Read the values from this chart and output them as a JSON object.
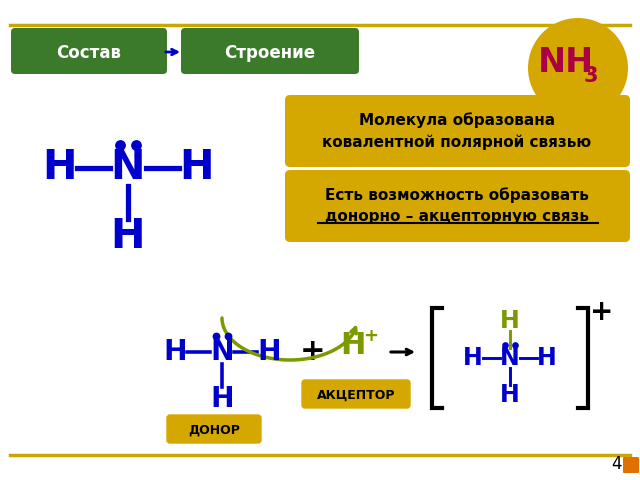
{
  "bg_color": "#ffffff",
  "top_line_color": "#c8a800",
  "bottom_line_color": "#c8a800",
  "green_box_color": "#3a7a2a",
  "green_box_text_color": "#ffffff",
  "gold_box_color": "#d4a800",
  "gold_circle_color": "#d4a800",
  "nh3_text_color": "#aa0044",
  "blue_atom_color": "#0000cc",
  "olive_atom_color": "#7a9a00",
  "black_color": "#111111",
  "label1": "Состав",
  "label2": "Строение",
  "box1_line1": "Молекула образована",
  "box1_line2": "ковалентной полярной связью",
  "box2_line1": "Есть возможность образовать",
  "box2_line2": "донорно – акцепторную связь",
  "donor_label": "ДОНОР",
  "acceptor_label": "АКЦЕПТОР",
  "page_number": "4",
  "nav_arrow_color": "#e07000"
}
